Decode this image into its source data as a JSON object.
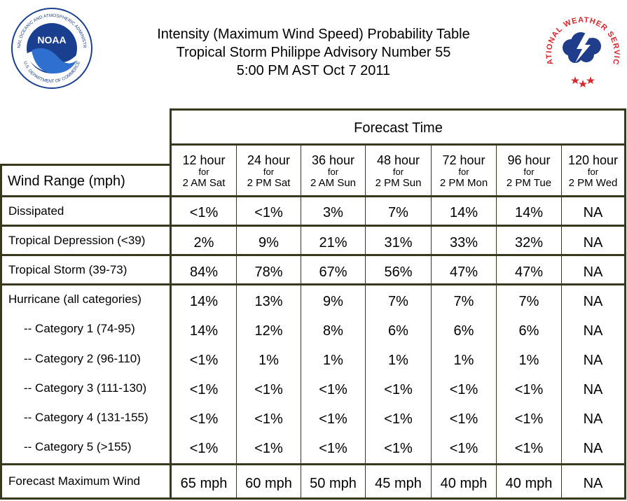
{
  "header": {
    "title_line1": "Intensity (Maximum Wind Speed) Probability Table",
    "title_line2": "Tropical Storm Philippe Advisory Number 55",
    "title_line3": "5:00 PM AST Oct 7 2011",
    "noaa_logo_text": "NOAA",
    "noaa_ring_top": "NATIONAL OCEANIC AND ATMOSPHERIC ADMINISTRATION",
    "noaa_ring_bottom": "U.S. DEPARTMENT OF COMMERCE",
    "nws_ring_text": "NATIONAL WEATHER SERVICE"
  },
  "table": {
    "forecast_time_label": "Forecast Time",
    "wind_range_label": "Wind Range (mph)",
    "columns": [
      {
        "hour": "12 hour",
        "for": "for",
        "date": "2 AM Sat"
      },
      {
        "hour": "24 hour",
        "for": "for",
        "date": "2 PM Sat"
      },
      {
        "hour": "36 hour",
        "for": "for",
        "date": "2 AM Sun"
      },
      {
        "hour": "48 hour",
        "for": "for",
        "date": "2 PM Sun"
      },
      {
        "hour": "72 hour",
        "for": "for",
        "date": "2 PM Mon"
      },
      {
        "hour": "96 hour",
        "for": "for",
        "date": "2 PM Tue"
      },
      {
        "hour": "120 hour",
        "for": "for",
        "date": "2 PM Wed"
      }
    ],
    "rows": [
      {
        "label": "Dissipated",
        "values": [
          "<1%",
          "<1%",
          "3%",
          "7%",
          "14%",
          "14%",
          "NA"
        ]
      },
      {
        "label": "Tropical Depression (<39)",
        "values": [
          "2%",
          "9%",
          "21%",
          "31%",
          "33%",
          "32%",
          "NA"
        ]
      },
      {
        "label": "Tropical Storm (39-73)",
        "values": [
          "84%",
          "78%",
          "67%",
          "56%",
          "47%",
          "47%",
          "NA"
        ]
      },
      {
        "label": "Hurricane (all categories)",
        "values": [
          "14%",
          "13%",
          "9%",
          "7%",
          "7%",
          "7%",
          "NA"
        ]
      },
      {
        "label": "-- Category 1 (74-95)",
        "values": [
          "14%",
          "12%",
          "8%",
          "6%",
          "6%",
          "6%",
          "NA"
        ]
      },
      {
        "label": "-- Category 2 (96-110)",
        "values": [
          "<1%",
          "1%",
          "1%",
          "1%",
          "1%",
          "1%",
          "NA"
        ]
      },
      {
        "label": "-- Category 3 (111-130)",
        "values": [
          "<1%",
          "<1%",
          "<1%",
          "<1%",
          "<1%",
          "<1%",
          "NA"
        ]
      },
      {
        "label": "-- Category 4 (131-155)",
        "values": [
          "<1%",
          "<1%",
          "<1%",
          "<1%",
          "<1%",
          "<1%",
          "NA"
        ]
      },
      {
        "label": "-- Category 5 (>155)",
        "values": [
          "<1%",
          "<1%",
          "<1%",
          "<1%",
          "<1%",
          "<1%",
          "NA"
        ]
      },
      {
        "label": "Forecast Maximum Wind",
        "values": [
          "65 mph",
          "60 mph",
          "50 mph",
          "45 mph",
          "40 mph",
          "40 mph",
          "NA"
        ]
      }
    ]
  },
  "colors": {
    "border": "#38381e",
    "noaa_blue": "#1b3f8f",
    "nws_red": "#d7262b",
    "nws_blue": "#1f3d8a"
  }
}
